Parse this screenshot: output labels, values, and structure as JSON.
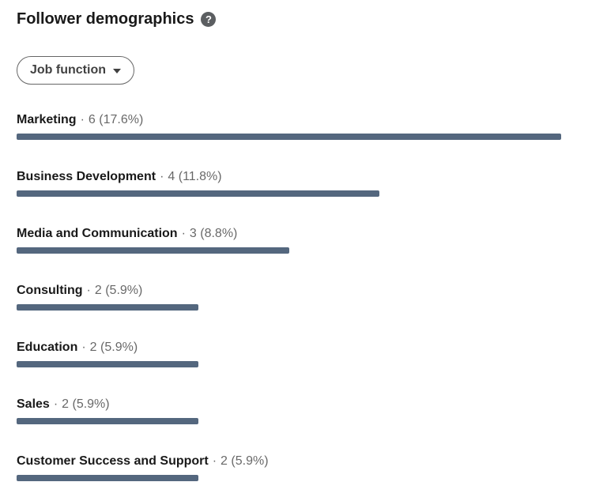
{
  "panel": {
    "title": "Follower demographics",
    "help_glyph": "?"
  },
  "filter": {
    "label": "Job function"
  },
  "separator": "·",
  "colors": {
    "bar": "#54677e",
    "title_text": "#1a1a1a",
    "muted_text": "#666666"
  },
  "rows": [
    {
      "label": "Marketing",
      "count_text": "6 (17.6%)",
      "value": 6
    },
    {
      "label": "Business Development",
      "count_text": "4 (11.8%)",
      "value": 4
    },
    {
      "label": "Media and Communication",
      "count_text": "3 (8.8%)",
      "value": 3
    },
    {
      "label": "Consulting",
      "count_text": "2 (5.9%)",
      "value": 2
    },
    {
      "label": "Education",
      "count_text": "2 (5.9%)",
      "value": 2
    },
    {
      "label": "Sales",
      "count_text": "2 (5.9%)",
      "value": 2
    },
    {
      "label": "Customer Success and Support",
      "count_text": "2 (5.9%)",
      "value": 2
    }
  ],
  "chart_data": {
    "type": "bar",
    "orientation": "horizontal",
    "title": "Follower demographics",
    "filter_selected": "Job function",
    "categories": [
      "Marketing",
      "Business Development",
      "Media and Communication",
      "Consulting",
      "Education",
      "Sales",
      "Customer Success and Support"
    ],
    "values": [
      6,
      4,
      3,
      2,
      2,
      2,
      2
    ],
    "percentages": [
      17.6,
      11.8,
      8.8,
      5.9,
      5.9,
      5.9,
      5.9
    ],
    "max_value": 6,
    "bar_color": "#54677e",
    "grid": false,
    "legend": false
  }
}
